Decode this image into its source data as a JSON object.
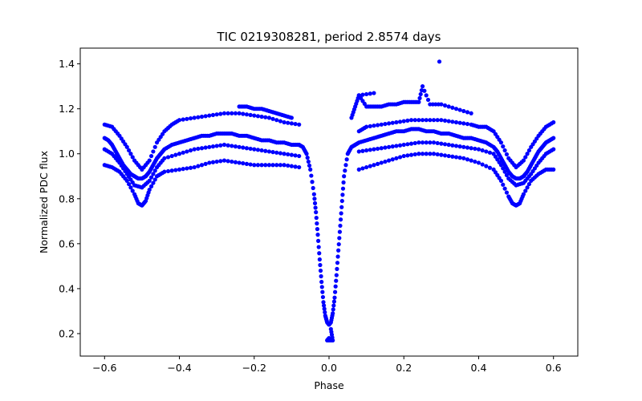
{
  "chart_data": {
    "type": "scatter",
    "title": "TIC 0219308281, period 2.8574 days",
    "xlabel": "Phase",
    "ylabel": "Normalized PDC flux",
    "xlim": [
      -0.665,
      0.665
    ],
    "ylim": [
      0.1,
      1.47
    ],
    "xticks": [
      -0.6,
      -0.4,
      -0.2,
      0.0,
      0.2,
      0.4,
      0.6
    ],
    "xtick_labels": [
      "−0.6",
      "−0.4",
      "−0.2",
      "0.0",
      "0.2",
      "0.4",
      "0.6"
    ],
    "yticks": [
      0.2,
      0.4,
      0.6,
      0.8,
      1.0,
      1.2,
      1.4
    ],
    "ytick_labels": [
      "0.2",
      "0.4",
      "0.6",
      "0.8",
      "1.0",
      "1.2",
      "1.4"
    ],
    "grid": false,
    "marker_color": "#0000ff",
    "series": [
      {
        "x": [
          -0.6,
          -0.59,
          -0.58,
          -0.57,
          -0.56,
          -0.55,
          -0.54,
          -0.53,
          -0.52,
          -0.51,
          -0.5,
          -0.49,
          -0.48,
          -0.47,
          -0.46,
          -0.45,
          -0.44,
          -0.42,
          -0.4,
          -0.38,
          -0.36,
          -0.34,
          -0.32,
          -0.3,
          -0.28,
          -0.26,
          -0.24,
          -0.22,
          -0.2,
          -0.18,
          -0.16,
          -0.14,
          -0.12,
          -0.1,
          -0.08,
          -0.07,
          -0.06,
          -0.05,
          -0.04,
          -0.035,
          -0.03,
          -0.025,
          -0.02,
          -0.015,
          -0.01,
          -0.005,
          0.0,
          0.005,
          0.01,
          0.015,
          0.02,
          0.025,
          0.03,
          0.035,
          0.04,
          0.05,
          0.06,
          0.07,
          0.08,
          0.1,
          0.12,
          0.14,
          0.16,
          0.18,
          0.2,
          0.22,
          0.24,
          0.26,
          0.28,
          0.3,
          0.32,
          0.34,
          0.36,
          0.38,
          0.4,
          0.42,
          0.44,
          0.45,
          0.46,
          0.47,
          0.48,
          0.49,
          0.5,
          0.51,
          0.52,
          0.53,
          0.54,
          0.55,
          0.56,
          0.57,
          0.58,
          0.59,
          0.6
        ],
        "y": [
          1.07,
          1.06,
          1.04,
          1.01,
          0.98,
          0.95,
          0.93,
          0.91,
          0.9,
          0.89,
          0.89,
          0.9,
          0.92,
          0.95,
          0.98,
          1.0,
          1.02,
          1.04,
          1.05,
          1.06,
          1.07,
          1.08,
          1.08,
          1.09,
          1.09,
          1.09,
          1.08,
          1.08,
          1.07,
          1.06,
          1.06,
          1.05,
          1.05,
          1.04,
          1.04,
          1.03,
          1.0,
          0.93,
          0.82,
          0.74,
          0.64,
          0.53,
          0.43,
          0.34,
          0.28,
          0.25,
          0.24,
          0.25,
          0.29,
          0.36,
          0.46,
          0.57,
          0.68,
          0.79,
          0.9,
          1.0,
          1.03,
          1.04,
          1.05,
          1.06,
          1.07,
          1.08,
          1.09,
          1.1,
          1.1,
          1.11,
          1.11,
          1.1,
          1.1,
          1.09,
          1.09,
          1.08,
          1.07,
          1.07,
          1.06,
          1.05,
          1.03,
          1.01,
          0.98,
          0.95,
          0.92,
          0.9,
          0.89,
          0.89,
          0.9,
          0.92,
          0.95,
          0.98,
          1.01,
          1.03,
          1.05,
          1.06,
          1.07
        ]
      },
      {
        "x": [
          -0.6,
          -0.58,
          -0.56,
          -0.54,
          -0.52,
          -0.5,
          -0.48,
          -0.46,
          -0.44,
          -0.42,
          -0.4,
          -0.36,
          -0.32,
          -0.28,
          -0.24,
          -0.2,
          -0.16,
          -0.12,
          -0.08,
          0.08,
          0.1,
          0.14,
          0.18,
          0.22,
          0.26,
          0.3,
          0.34,
          0.38,
          0.4,
          0.42,
          0.44,
          0.46,
          0.48,
          0.5,
          0.52,
          0.54,
          0.56,
          0.58,
          0.6
        ],
        "y": [
          1.13,
          1.12,
          1.08,
          1.03,
          0.97,
          0.93,
          0.97,
          1.05,
          1.1,
          1.13,
          1.15,
          1.16,
          1.17,
          1.18,
          1.18,
          1.17,
          1.16,
          1.14,
          1.13,
          1.1,
          1.12,
          1.13,
          1.14,
          1.15,
          1.15,
          1.15,
          1.14,
          1.13,
          1.12,
          1.12,
          1.1,
          1.05,
          0.98,
          0.94,
          0.97,
          1.03,
          1.08,
          1.12,
          1.14
        ]
      },
      {
        "x": [
          -0.6,
          -0.58,
          -0.56,
          -0.54,
          -0.52,
          -0.5,
          -0.48,
          -0.46,
          -0.44,
          -0.4,
          -0.36,
          -0.32,
          -0.28,
          -0.24,
          -0.2,
          -0.16,
          -0.12,
          -0.08,
          0.08,
          0.12,
          0.16,
          0.2,
          0.24,
          0.28,
          0.32,
          0.36,
          0.4,
          0.44,
          0.46,
          0.48,
          0.5,
          0.52,
          0.54,
          0.56,
          0.58,
          0.6
        ],
        "y": [
          1.02,
          1.0,
          0.96,
          0.91,
          0.86,
          0.85,
          0.88,
          0.94,
          0.98,
          1.0,
          1.02,
          1.03,
          1.04,
          1.03,
          1.02,
          1.01,
          1.0,
          0.99,
          1.01,
          1.02,
          1.03,
          1.04,
          1.05,
          1.05,
          1.04,
          1.03,
          1.02,
          1.0,
          0.95,
          0.89,
          0.86,
          0.87,
          0.91,
          0.96,
          1.0,
          1.02
        ]
      },
      {
        "x": [
          -0.6,
          -0.58,
          -0.56,
          -0.54,
          -0.52,
          -0.51,
          -0.5,
          -0.49,
          -0.48,
          -0.46,
          -0.44,
          -0.4,
          -0.36,
          -0.32,
          -0.28,
          -0.24,
          -0.2,
          -0.16,
          -0.12,
          -0.08,
          0.08,
          0.12,
          0.16,
          0.2,
          0.24,
          0.28,
          0.32,
          0.36,
          0.4,
          0.44,
          0.46,
          0.48,
          0.49,
          0.5,
          0.51,
          0.52,
          0.54,
          0.56,
          0.58,
          0.6
        ],
        "y": [
          0.95,
          0.94,
          0.92,
          0.88,
          0.82,
          0.78,
          0.77,
          0.79,
          0.84,
          0.9,
          0.92,
          0.93,
          0.94,
          0.96,
          0.97,
          0.96,
          0.95,
          0.95,
          0.95,
          0.94,
          0.93,
          0.95,
          0.97,
          0.99,
          1.0,
          1.0,
          0.99,
          0.98,
          0.96,
          0.93,
          0.88,
          0.81,
          0.78,
          0.77,
          0.78,
          0.82,
          0.88,
          0.91,
          0.93,
          0.93
        ]
      },
      {
        "x": [
          -0.24,
          -0.22,
          -0.2,
          -0.18,
          -0.16,
          -0.14,
          -0.12,
          -0.1,
          0.06,
          0.07,
          0.08,
          0.1,
          0.12,
          0.14,
          0.16,
          0.18,
          0.2,
          0.22,
          0.24,
          0.25,
          0.27,
          0.3,
          0.34,
          0.38,
          0.08,
          0.12
        ],
        "y": [
          1.21,
          1.21,
          1.2,
          1.2,
          1.19,
          1.18,
          1.17,
          1.16,
          1.16,
          1.21,
          1.26,
          1.21,
          1.21,
          1.21,
          1.22,
          1.22,
          1.23,
          1.23,
          1.23,
          1.3,
          1.22,
          1.22,
          1.2,
          1.18,
          1.26,
          1.27
        ]
      },
      {
        "x": [
          0.295,
          0.0,
          -0.005,
          0.01,
          0.005
        ],
        "y": [
          1.41,
          0.18,
          0.17,
          0.17,
          0.22
        ]
      }
    ]
  }
}
